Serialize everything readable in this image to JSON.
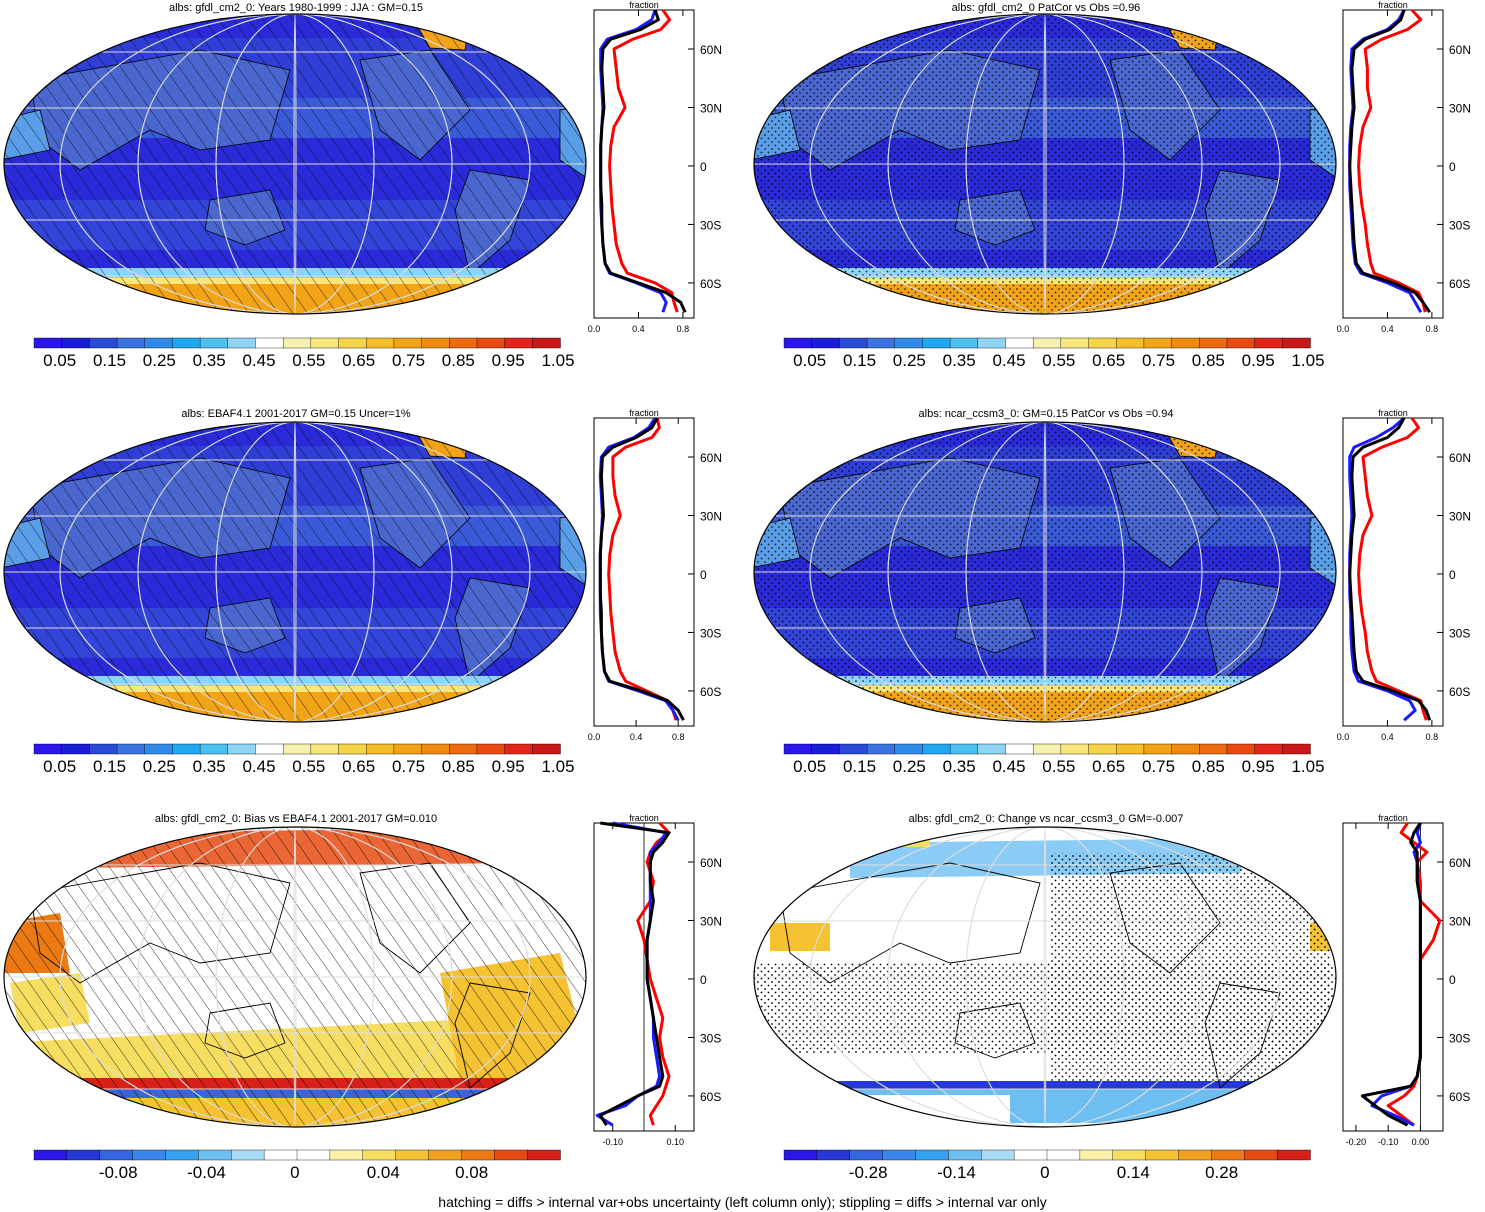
{
  "footnote": "hatching = diffs > internal var+obs uncertainty (left column only); stippling = diffs > internal var only",
  "colors": {
    "abs_scale": [
      "#2a16e8",
      "#1b1cd6",
      "#2a4bd6",
      "#3a72e0",
      "#2f8ae8",
      "#1fa7f0",
      "#4cc0f0",
      "#8fd4f5",
      "#ffffff",
      "#f6f1b0",
      "#f7e67a",
      "#f6d44a",
      "#f5bf2a",
      "#f2a418",
      "#ef8a10",
      "#ec6a10",
      "#e84a12",
      "#e0251a",
      "#c81818"
    ],
    "diff_scale": [
      "#2a16e8",
      "#2538d8",
      "#3366e0",
      "#3a86ea",
      "#34a2f0",
      "#6dbff2",
      "#a8dcf6",
      "#ffffff",
      "#ffffff",
      "#fbf1a8",
      "#f7de60",
      "#f4c233",
      "#f0a11f",
      "#ec7a14",
      "#e84b12",
      "#d81f18"
    ],
    "black": "#000000",
    "red": "#ff0000",
    "blue": "#1a1aff"
  },
  "chart_data": [
    {
      "type": "heatmap",
      "title": "albs: gfdl_cm2_0: Years 1980-1999 : JJA : GM=0.15",
      "overlay": "hatching",
      "colorbar_ticks": [
        "0.05",
        "0.15",
        "0.25",
        "0.35",
        "0.45",
        "0.55",
        "0.65",
        "0.75",
        "0.85",
        "0.95",
        "1.05"
      ],
      "profile": {
        "title": "fraction",
        "xticks": [
          "0.0",
          "0.4",
          "0.8"
        ],
        "xlim": [
          0,
          0.9
        ],
        "yticks": [
          "60N",
          "30N",
          "0",
          "30S",
          "60S"
        ],
        "lat": [
          80,
          75,
          70,
          65,
          60,
          50,
          40,
          30,
          20,
          10,
          0,
          -10,
          -20,
          -30,
          -40,
          -50,
          -55,
          -60,
          -65,
          -70,
          -75
        ],
        "series": [
          {
            "color": "black",
            "values": [
              0.55,
              0.58,
              0.42,
              0.15,
              0.08,
              0.07,
              0.08,
              0.09,
              0.07,
              0.06,
              0.06,
              0.06,
              0.07,
              0.07,
              0.08,
              0.1,
              0.15,
              0.4,
              0.65,
              0.78,
              0.82
            ]
          },
          {
            "color": "blue",
            "values": [
              0.55,
              0.52,
              0.38,
              0.12,
              0.06,
              0.06,
              0.07,
              0.08,
              0.07,
              0.06,
              0.06,
              0.06,
              0.06,
              0.07,
              0.08,
              0.1,
              0.14,
              0.38,
              0.6,
              0.65,
              0.62
            ]
          },
          {
            "color": "red",
            "values": [
              0.62,
              0.68,
              0.6,
              0.35,
              0.18,
              0.2,
              0.22,
              0.28,
              0.18,
              0.15,
              0.14,
              0.15,
              0.16,
              0.18,
              0.2,
              0.25,
              0.3,
              0.55,
              0.7,
              0.72,
              0.75
            ]
          }
        ]
      }
    },
    {
      "type": "heatmap",
      "title": "albs: gfdl_cm2_0 PatCor vs Obs =0.96",
      "overlay": "stippling",
      "colorbar_ticks": [
        "0.05",
        "0.15",
        "0.25",
        "0.35",
        "0.45",
        "0.55",
        "0.65",
        "0.75",
        "0.85",
        "0.95",
        "1.05"
      ],
      "profile": {
        "title": "fraction",
        "xticks": [
          "0.0",
          "0.4",
          "0.8"
        ],
        "xlim": [
          0,
          0.9
        ],
        "yticks": [
          "60N",
          "30N",
          "0",
          "30S",
          "60S"
        ],
        "lat": [
          80,
          75,
          70,
          65,
          60,
          50,
          40,
          30,
          20,
          10,
          0,
          -10,
          -20,
          -30,
          -40,
          -50,
          -55,
          -60,
          -65,
          -70,
          -75
        ],
        "series": [
          {
            "color": "black",
            "values": [
              0.55,
              0.52,
              0.42,
              0.2,
              0.1,
              0.08,
              0.09,
              0.1,
              0.08,
              0.07,
              0.06,
              0.07,
              0.08,
              0.09,
              0.1,
              0.12,
              0.18,
              0.45,
              0.65,
              0.72,
              0.78
            ]
          },
          {
            "color": "blue",
            "values": [
              0.55,
              0.5,
              0.4,
              0.18,
              0.08,
              0.07,
              0.08,
              0.09,
              0.07,
              0.06,
              0.06,
              0.06,
              0.07,
              0.08,
              0.09,
              0.11,
              0.16,
              0.4,
              0.6,
              0.65,
              0.7
            ]
          },
          {
            "color": "red",
            "values": [
              0.62,
              0.7,
              0.58,
              0.35,
              0.2,
              0.22,
              0.22,
              0.25,
              0.18,
              0.15,
              0.14,
              0.15,
              0.17,
              0.2,
              0.22,
              0.25,
              0.28,
              0.5,
              0.68,
              0.72,
              0.74
            ]
          }
        ]
      }
    },
    {
      "type": "heatmap",
      "title": "albs: EBAF4.1 2001-2017 GM=0.15 Uncer=1%",
      "overlay": "hatching",
      "colorbar_ticks": [
        "0.05",
        "0.15",
        "0.25",
        "0.35",
        "0.45",
        "0.55",
        "0.65",
        "0.75",
        "0.85",
        "0.95",
        "1.05"
      ],
      "profile": {
        "title": "fraction",
        "xticks": [
          "0.0",
          "0.4",
          "0.8"
        ],
        "xlim": [
          0,
          0.95
        ],
        "yticks": [
          "60N",
          "30N",
          "0",
          "30S",
          "60S"
        ],
        "lat": [
          80,
          75,
          70,
          65,
          60,
          50,
          40,
          30,
          20,
          10,
          0,
          -10,
          -20,
          -30,
          -40,
          -50,
          -55,
          -60,
          -65,
          -70,
          -75
        ],
        "series": [
          {
            "color": "black",
            "values": [
              0.6,
              0.55,
              0.4,
              0.18,
              0.08,
              0.07,
              0.08,
              0.09,
              0.07,
              0.06,
              0.06,
              0.06,
              0.07,
              0.07,
              0.08,
              0.1,
              0.15,
              0.45,
              0.7,
              0.8,
              0.85
            ]
          },
          {
            "color": "blue",
            "values": [
              0.58,
              0.52,
              0.38,
              0.14,
              0.07,
              0.06,
              0.07,
              0.08,
              0.07,
              0.06,
              0.06,
              0.06,
              0.06,
              0.07,
              0.08,
              0.1,
              0.14,
              0.42,
              0.68,
              0.75,
              0.8
            ]
          },
          {
            "color": "red",
            "values": [
              0.6,
              0.62,
              0.55,
              0.3,
              0.18,
              0.18,
              0.2,
              0.25,
              0.18,
              0.15,
              0.14,
              0.15,
              0.16,
              0.18,
              0.2,
              0.25,
              0.3,
              0.5,
              0.7,
              0.75,
              0.78
            ]
          }
        ]
      }
    },
    {
      "type": "heatmap",
      "title": "albs: ncar_ccsm3_0: GM=0.15 PatCor vs Obs =0.94",
      "overlay": "stippling",
      "colorbar_ticks": [
        "0.05",
        "0.15",
        "0.25",
        "0.35",
        "0.45",
        "0.55",
        "0.65",
        "0.75",
        "0.85",
        "0.95",
        "1.05"
      ],
      "profile": {
        "title": "fraction",
        "xticks": [
          "0.0",
          "0.4",
          "0.8"
        ],
        "xlim": [
          0,
          0.9
        ],
        "yticks": [
          "60N",
          "30N",
          "0",
          "30S",
          "60S"
        ],
        "lat": [
          80,
          75,
          70,
          65,
          60,
          50,
          40,
          30,
          20,
          10,
          0,
          -10,
          -20,
          -30,
          -40,
          -50,
          -55,
          -60,
          -65,
          -70,
          -75
        ],
        "series": [
          {
            "color": "black",
            "values": [
              0.55,
              0.5,
              0.4,
              0.18,
              0.09,
              0.08,
              0.09,
              0.1,
              0.08,
              0.07,
              0.06,
              0.07,
              0.08,
              0.09,
              0.1,
              0.12,
              0.18,
              0.45,
              0.68,
              0.75,
              0.78
            ]
          },
          {
            "color": "blue",
            "values": [
              0.55,
              0.45,
              0.3,
              0.1,
              0.06,
              0.06,
              0.07,
              0.08,
              0.07,
              0.06,
              0.06,
              0.06,
              0.07,
              0.07,
              0.08,
              0.1,
              0.14,
              0.4,
              0.6,
              0.65,
              0.55
            ]
          },
          {
            "color": "red",
            "values": [
              0.62,
              0.68,
              0.58,
              0.35,
              0.18,
              0.2,
              0.22,
              0.26,
              0.18,
              0.15,
              0.14,
              0.15,
              0.17,
              0.2,
              0.22,
              0.26,
              0.3,
              0.5,
              0.7,
              0.72,
              0.75
            ]
          }
        ]
      }
    },
    {
      "type": "heatmap",
      "title": "albs: gfdl_cm2_0: Bias vs EBAF4.1 2001-2017 GM=0.010",
      "overlay": "hatching",
      "colorbar_ticks": [
        "-0.08",
        "-0.04",
        "0",
        "0.04",
        "0.08"
      ],
      "profile": {
        "title": "fraction",
        "xticks": [
          "-0.10",
          "0.10"
        ],
        "xlim": [
          -0.16,
          0.16
        ],
        "yticks": [
          "60N",
          "30N",
          "0",
          "30S",
          "60S"
        ],
        "lat": [
          80,
          75,
          70,
          65,
          60,
          50,
          40,
          30,
          20,
          10,
          0,
          -10,
          -20,
          -30,
          -40,
          -50,
          -55,
          -60,
          -65,
          -70,
          -75
        ],
        "series": [
          {
            "color": "black",
            "values": [
              -0.14,
              0.08,
              0.06,
              0.03,
              0.02,
              0.02,
              0.03,
              0.02,
              0.01,
              0.01,
              0.01,
              0.02,
              0.03,
              0.04,
              0.05,
              0.06,
              0.05,
              -0.02,
              -0.08,
              -0.14,
              -0.12
            ]
          },
          {
            "color": "blue",
            "values": [
              -0.1,
              0.07,
              0.05,
              0.02,
              0.02,
              0.02,
              0.02,
              0.02,
              0.01,
              0.01,
              0.01,
              0.02,
              0.03,
              0.03,
              0.04,
              0.05,
              0.04,
              -0.02,
              -0.06,
              -0.15,
              -0.1
            ]
          },
          {
            "color": "red",
            "values": [
              0.05,
              0.08,
              0.04,
              0.02,
              0.01,
              0.03,
              0.02,
              -0.02,
              0.0,
              0.01,
              0.02,
              0.04,
              0.06,
              0.05,
              0.06,
              0.08,
              0.07,
              0.06,
              0.04,
              0.02,
              0.03
            ]
          }
        ]
      }
    },
    {
      "type": "heatmap",
      "title": "albs: gfdl_cm2_0: Change vs ncar_ccsm3_0 GM=-0.007",
      "overlay": "stippling",
      "colorbar_ticks": [
        "-0.28",
        "-0.14",
        "0",
        "0.14",
        "0.28"
      ],
      "profile": {
        "title": "fraction",
        "xticks": [
          "-0.20",
          "-0.10",
          "0.00"
        ],
        "xlim": [
          -0.24,
          0.07
        ],
        "yticks": [
          "60N",
          "30N",
          "0",
          "30S",
          "60S"
        ],
        "lat": [
          80,
          75,
          70,
          65,
          60,
          50,
          40,
          30,
          20,
          10,
          0,
          -10,
          -20,
          -30,
          -40,
          -50,
          -55,
          -60,
          -65,
          -70,
          -75
        ],
        "series": [
          {
            "color": "black",
            "values": [
              0.0,
              -0.02,
              -0.03,
              -0.01,
              -0.01,
              -0.01,
              0.0,
              0.0,
              0.0,
              0.0,
              0.0,
              0.0,
              0.0,
              0.0,
              0.0,
              -0.01,
              -0.03,
              -0.18,
              -0.14,
              -0.1,
              -0.04
            ]
          },
          {
            "color": "blue",
            "values": [
              0.0,
              -0.01,
              0.0,
              -0.02,
              -0.01,
              -0.01,
              0.0,
              0.0,
              0.0,
              0.0,
              0.0,
              0.0,
              0.0,
              0.0,
              0.0,
              -0.01,
              -0.03,
              -0.12,
              -0.15,
              -0.08,
              -0.02
            ]
          },
          {
            "color": "red",
            "values": [
              -0.04,
              -0.06,
              -0.02,
              0.02,
              -0.01,
              0.0,
              0.0,
              0.06,
              0.04,
              0.0,
              0.0,
              0.0,
              0.0,
              0.0,
              0.0,
              -0.01,
              -0.02,
              -0.05,
              -0.1,
              -0.06,
              -0.02
            ]
          }
        ]
      }
    }
  ]
}
